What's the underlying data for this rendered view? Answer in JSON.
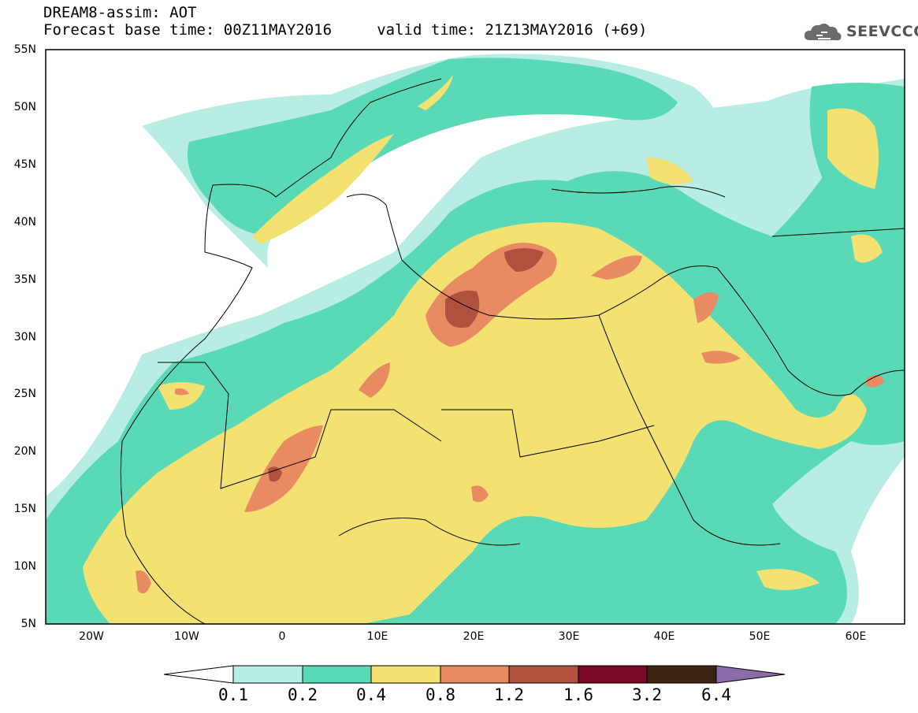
{
  "header": {
    "title_line1": "DREAM8-assim: AOT",
    "title_line2": "Forecast base time: 00Z11MAY2016     valid time: 21Z13MAY2016 (+69)",
    "logo_text": "SEEVCCC",
    "logo_icon": "cloud-icon"
  },
  "map": {
    "lat_range": [
      5,
      55
    ],
    "lon_range": [
      -25,
      65
    ],
    "lat_ticks": [
      "55N",
      "50N",
      "45N",
      "40N",
      "35N",
      "30N",
      "25N",
      "20N",
      "15N",
      "10N",
      "5N"
    ],
    "lon_ticks": [
      "20W",
      "10W",
      "0",
      "10E",
      "20E",
      "30E",
      "40E",
      "50E",
      "60E"
    ]
  },
  "colorbar": {
    "ticks": [
      "0.1",
      "0.2",
      "0.4",
      "0.8",
      "1.2",
      "1.6",
      "3.2",
      "6.4"
    ],
    "colors": {
      "below": "#ffffff",
      "c01_02": "#b8ede3",
      "c02_04": "#5ad9b6",
      "c04_08": "#f3e272",
      "c08_12": "#e88b63",
      "c12_16": "#b0513f",
      "c16_32": "#7a0a26",
      "c32_64": "#3d2410",
      "above": "#8c6ca8"
    }
  }
}
